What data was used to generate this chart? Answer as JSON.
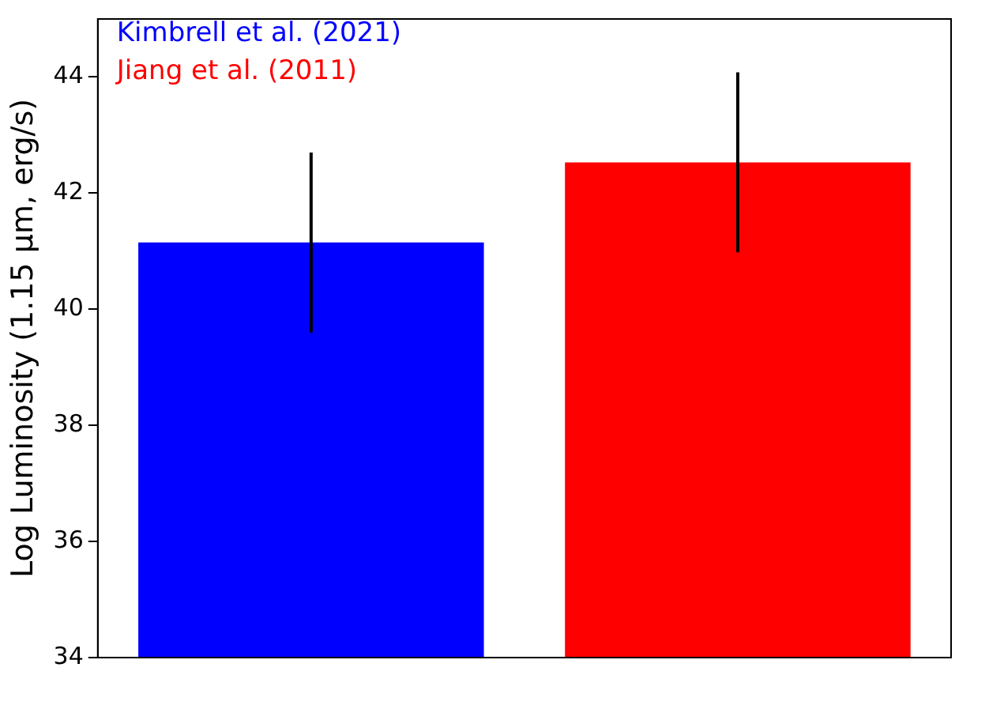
{
  "chart_data": {
    "type": "bar",
    "ylabel": "Log Luminosity (1.15 μm, erg/s)",
    "categories": [
      null,
      null
    ],
    "values": [
      41.15,
      42.53
    ],
    "colors": [
      "#0000ff",
      "#ff0000"
    ],
    "errors": [
      1.55,
      1.55
    ],
    "annotations": [
      "Kimbrell et al. (2021)",
      "Jiang et al. (2011)"
    ],
    "ylim": [
      34,
      45
    ],
    "yticks": [
      34,
      36,
      38,
      40,
      42,
      44
    ],
    "grid": false
  }
}
